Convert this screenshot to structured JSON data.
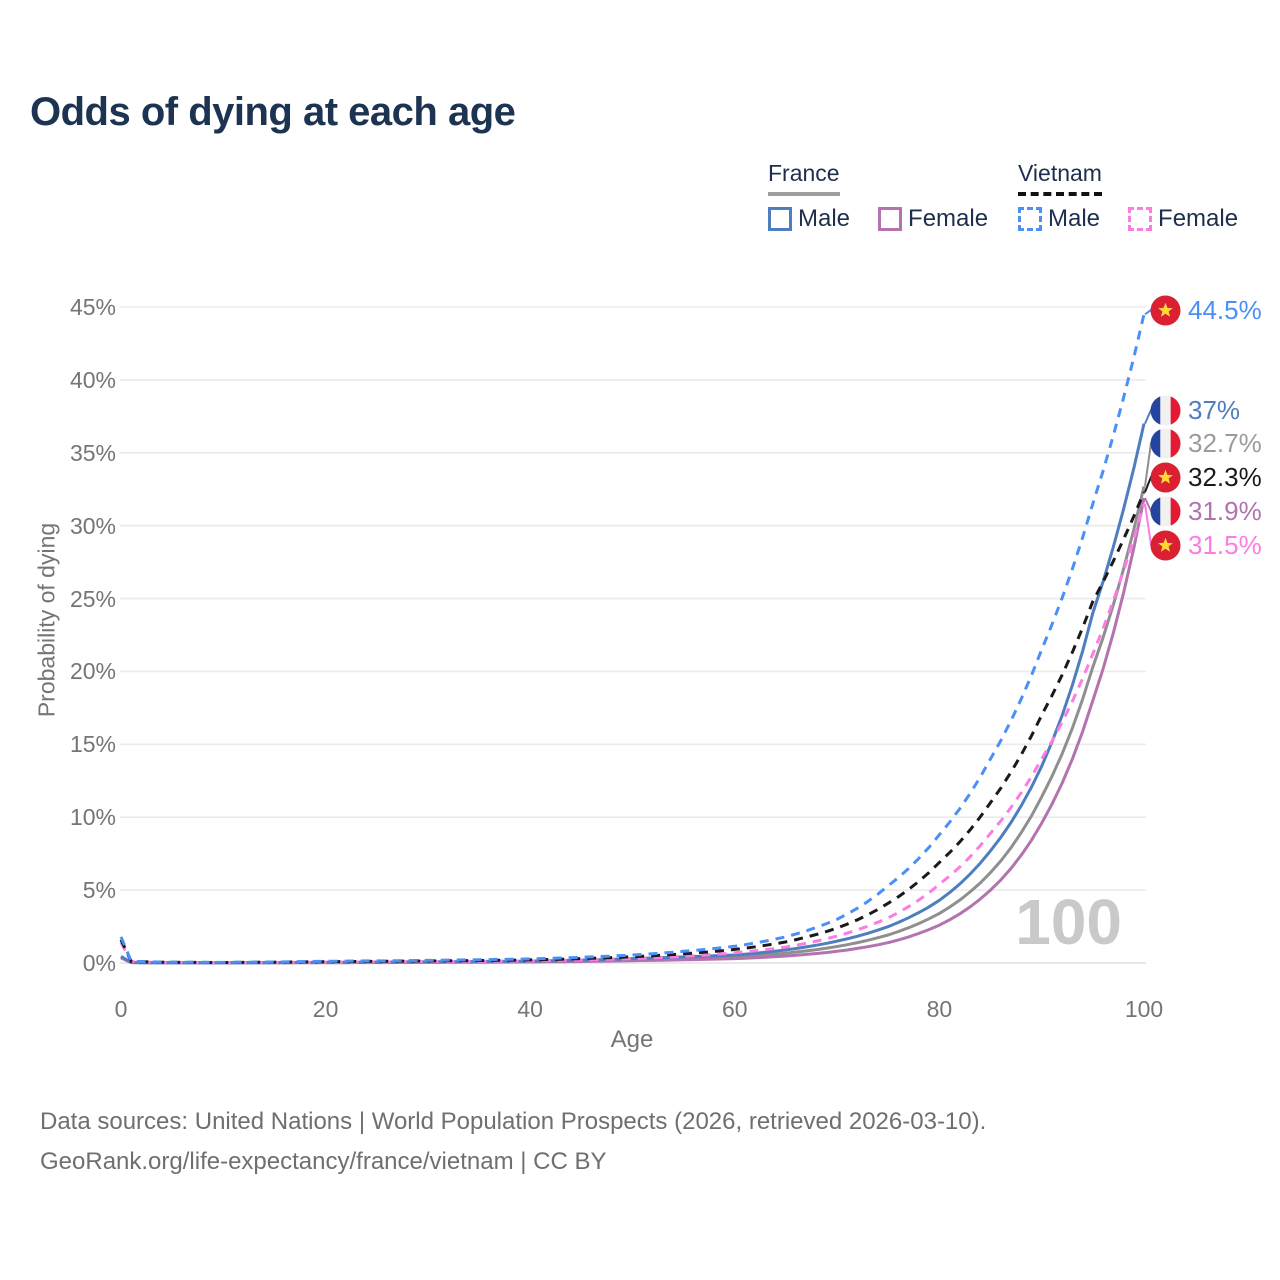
{
  "title": "Odds of dying at each age",
  "legend": {
    "france": {
      "label": "France",
      "male_label": "Male",
      "female_label": "Female"
    },
    "vietnam": {
      "label": "Vietnam",
      "male_label": "Male",
      "female_label": "Female"
    }
  },
  "axes": {
    "y_title": "Probability of dying",
    "x_title": "Age",
    "y_tick_labels": [
      "45%",
      "40%",
      "35%",
      "30%",
      "25%",
      "20%",
      "15%",
      "10%",
      "5%",
      "0%"
    ],
    "x_tick_labels": [
      "0",
      "20",
      "40",
      "60",
      "80",
      "100"
    ]
  },
  "watermark": "100",
  "footer": {
    "line1": "Data sources: United Nations | World Population Prospects (2026, retrieved 2026-03-10).",
    "line2": "GeoRank.org/life-expectancy/france/vietnam | CC BY"
  },
  "colors": {
    "title": "#1d3352",
    "grid": "#ebebeb",
    "axis_text": "#757575",
    "watermark": "#c9c9c9",
    "france_flag_blue": "#2743a0",
    "france_flag_red": "#e21a32",
    "vietnam_flag_red": "#da2032",
    "vietnam_star_yellow": "#ffd836"
  },
  "chart_data": {
    "type": "line",
    "title": "Odds of dying at each age",
    "xlabel": "Age",
    "ylabel": "Probability of dying",
    "x_range": [
      0,
      100
    ],
    "y_range_percent": [
      0,
      45
    ],
    "y_ticks_percent": [
      0,
      5,
      10,
      15,
      20,
      25,
      30,
      35,
      40,
      45
    ],
    "x_ticks": [
      0,
      20,
      40,
      60,
      80,
      100
    ],
    "grid": "horizontal",
    "legend_position": "top-right",
    "ages": [
      0,
      1,
      5,
      10,
      20,
      30,
      40,
      50,
      55,
      60,
      65,
      70,
      75,
      80,
      85,
      90,
      95,
      100
    ],
    "series": [
      {
        "name": "France both sexes",
        "country": "france",
        "sex": "both",
        "style": "solid",
        "color": "#8f8f8f",
        "label_color": "#9b9b9b",
        "end_label": "32.7%",
        "end_value": 32.7,
        "values": [
          0.4,
          0.032,
          0.011,
          0.01,
          0.035,
          0.06,
          0.1,
          0.23,
          0.32,
          0.42,
          0.68,
          1.13,
          1.93,
          3.4,
          6.2,
          11.4,
          20.3,
          32.7
        ]
      },
      {
        "name": "France female",
        "country": "france",
        "sex": "female",
        "style": "solid",
        "color": "#b273ae",
        "label_color": "#b273ae",
        "end_label": "31.9%",
        "end_value": 31.9,
        "values": [
          0.35,
          0.03,
          0.01,
          0.009,
          0.02,
          0.04,
          0.07,
          0.16,
          0.22,
          0.3,
          0.48,
          0.8,
          1.4,
          2.6,
          5.0,
          9.6,
          18.0,
          31.9
        ]
      },
      {
        "name": "France male",
        "country": "france",
        "sex": "male",
        "style": "solid",
        "color": "#4e7ec0",
        "label_color": "#4e7ec0",
        "end_label": "37%",
        "end_value": 37.0,
        "values": [
          0.45,
          0.035,
          0.012,
          0.012,
          0.05,
          0.08,
          0.13,
          0.3,
          0.42,
          0.55,
          0.9,
          1.5,
          2.5,
          4.3,
          7.7,
          13.5,
          24.0,
          37.0
        ]
      },
      {
        "name": "Vietnam female",
        "country": "vietnam",
        "sex": "female",
        "style": "dashed",
        "color": "#fd7ce1",
        "label_color": "#fd7ce1",
        "end_label": "31.5%",
        "end_value": 31.5,
        "values": [
          1.4,
          0.1,
          0.04,
          0.03,
          0.06,
          0.09,
          0.14,
          0.3,
          0.45,
          0.7,
          1.1,
          1.85,
          3.1,
          5.4,
          8.9,
          14.0,
          21.2,
          31.5
        ]
      },
      {
        "name": "Vietnam both sexes",
        "country": "vietnam",
        "sex": "both",
        "style": "dashed",
        "color": "#1a1a1a",
        "label_color": "#1a1a1a",
        "end_label": "32.3%",
        "end_value": 32.3,
        "values": [
          1.6,
          0.11,
          0.045,
          0.035,
          0.09,
          0.14,
          0.21,
          0.43,
          0.63,
          0.93,
          1.45,
          2.4,
          4.1,
          6.9,
          11.0,
          17.0,
          24.8,
          32.3
        ]
      },
      {
        "name": "Vietnam male",
        "country": "vietnam",
        "sex": "male",
        "style": "dashed",
        "color": "#4a90f7",
        "label_color": "#4a90f7",
        "end_label": "44.5%",
        "end_value": 44.5,
        "values": [
          1.8,
          0.12,
          0.05,
          0.04,
          0.12,
          0.18,
          0.28,
          0.55,
          0.8,
          1.15,
          1.8,
          3.0,
          5.3,
          8.8,
          14.0,
          21.5,
          31.5,
          44.5
        ]
      }
    ]
  }
}
